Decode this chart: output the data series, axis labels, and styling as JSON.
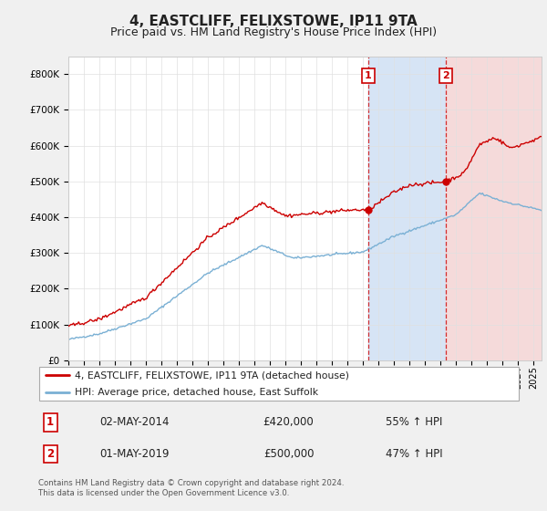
{
  "title": "4, EASTCLIFF, FELIXSTOWE, IP11 9TA",
  "subtitle": "Price paid vs. HM Land Registry's House Price Index (HPI)",
  "title_fontsize": 11,
  "subtitle_fontsize": 9,
  "ytick_values": [
    0,
    100000,
    200000,
    300000,
    400000,
    500000,
    600000,
    700000,
    800000
  ],
  "ylim": [
    0,
    850000
  ],
  "plot_bg_color": "#ffffff",
  "fig_bg_color": "#f0f0f0",
  "red_line_color": "#cc0000",
  "blue_line_color": "#7ab0d4",
  "shade_color1": "#d6e4f5",
  "shade_color2": "#f5dada",
  "vline1_x": 2014.33,
  "vline2_x": 2019.33,
  "marker1_x": 2014.33,
  "marker1_y": 420000,
  "marker2_x": 2019.33,
  "marker2_y": 500000,
  "legend_label_red": "4, EASTCLIFF, FELIXSTOWE, IP11 9TA (detached house)",
  "legend_label_blue": "HPI: Average price, detached house, East Suffolk",
  "box1_label": "1",
  "box1_date": "02-MAY-2014",
  "box1_price": "£420,000",
  "box1_hpi": "55% ↑ HPI",
  "box2_label": "2",
  "box2_date": "01-MAY-2019",
  "box2_price": "£500,000",
  "box2_hpi": "47% ↑ HPI",
  "footer": "Contains HM Land Registry data © Crown copyright and database right 2024.\nThis data is licensed under the Open Government Licence v3.0.",
  "xlim_start": 1995.0,
  "xlim_end": 2025.5
}
